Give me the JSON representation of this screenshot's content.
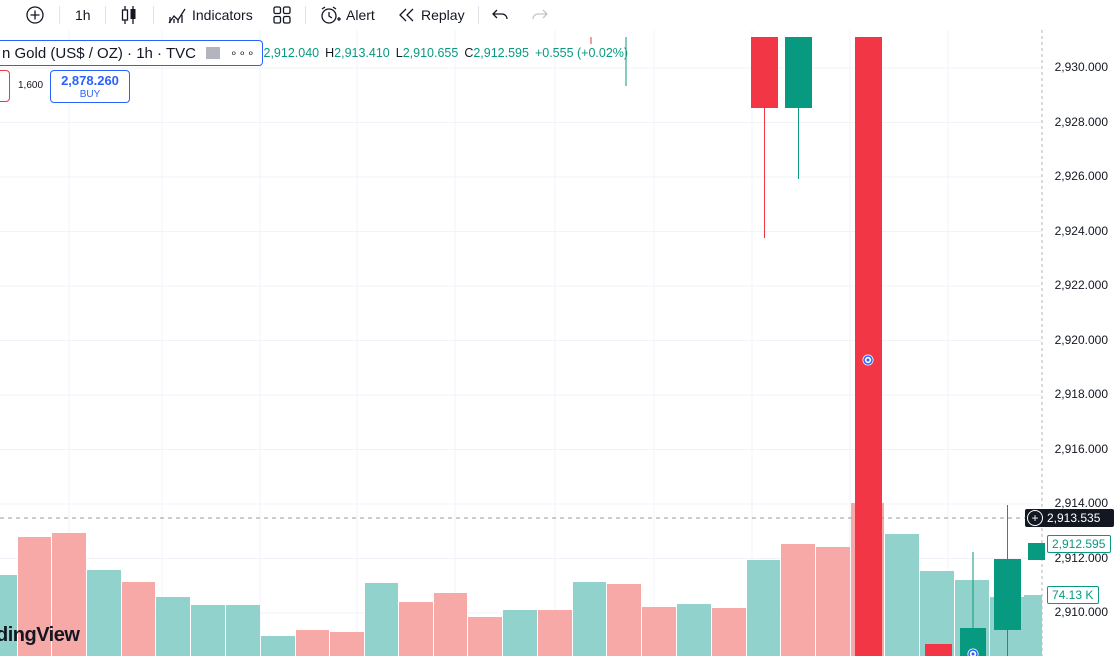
{
  "toolbar": {
    "interval": "1h",
    "indicators_label": "Indicators",
    "alert_label": "Alert",
    "replay_label": "Replay"
  },
  "legend": {
    "symbol_title": "n Gold (US$ / OZ) · 1h · TVC",
    "more": "∘∘∘",
    "open_value": "2,912.040",
    "high_key": "H",
    "high_value": "2,913.410",
    "low_key": "L",
    "low_value": "2,910.655",
    "close_key": "C",
    "close_value": "2,912.595",
    "change": "+0.555 (+0.02%)"
  },
  "trade": {
    "spread": "1,600",
    "buy_price": "2,878.260",
    "buy_label": "BUY"
  },
  "price_axis": {
    "labels": [
      "2,930.000",
      "2,928.000",
      "2,926.000",
      "2,924.000",
      "2,922.000",
      "2,920.000",
      "2,918.000",
      "2,916.000",
      "2,914.000",
      "2,912.000",
      "2,910.000"
    ],
    "crosshair_price": "2,913.535",
    "last_price": "2,912.595",
    "volume_value": "74.13 K"
  },
  "watermark": "dingView",
  "colors": {
    "up": "#089981",
    "down": "#f23645",
    "vol_up": "#92d2cc",
    "vol_down": "#f7a9a7",
    "accent": "#2962ff"
  },
  "chart_data": {
    "type": "candlestick",
    "ylim": [
      2909.0,
      2931.5
    ],
    "candles": [
      {
        "dir": "down",
        "open": 2930.0,
        "close": 2928.5,
        "high": 2930.0,
        "low": 2923.8
      },
      {
        "dir": "up",
        "open": 2928.5,
        "close": 2930.0,
        "high": 2930.0,
        "low": 2926.0
      },
      {
        "dir": "down",
        "open": 2931.5,
        "close": 2909.0,
        "high": 2931.5,
        "low": 2909.0
      },
      {
        "dir": "down",
        "open": 2909.5,
        "close": 2909.0,
        "high": 2909.5,
        "low": 2909.0
      },
      {
        "dir": "up",
        "open": 2909.0,
        "close": 2909.5,
        "high": 2912.3,
        "low": 2909.0
      },
      {
        "dir": "up",
        "open": 2909.5,
        "close": 2912.0,
        "high": 2914.0,
        "low": 2909.0
      },
      {
        "dir": "up",
        "open": 2912.04,
        "close": 2912.595,
        "high": 2913.41,
        "low": 2910.655
      }
    ],
    "volume": [
      {
        "dir": "up"
      },
      {
        "dir": "down"
      },
      {
        "dir": "down"
      },
      {
        "dir": "up"
      },
      {
        "dir": "down"
      },
      {
        "dir": "up"
      },
      {
        "dir": "up"
      },
      {
        "dir": "up"
      },
      {
        "dir": "up"
      },
      {
        "dir": "down"
      },
      {
        "dir": "down"
      },
      {
        "dir": "up"
      },
      {
        "dir": "down"
      },
      {
        "dir": "down"
      },
      {
        "dir": "down"
      },
      {
        "dir": "up"
      },
      {
        "dir": "down"
      },
      {
        "dir": "up"
      },
      {
        "dir": "down"
      },
      {
        "dir": "down"
      },
      {
        "dir": "up"
      },
      {
        "dir": "down"
      },
      {
        "dir": "up"
      },
      {
        "dir": "down"
      },
      {
        "dir": "down"
      },
      {
        "dir": "down"
      },
      {
        "dir": "up"
      },
      {
        "dir": "up"
      },
      {
        "dir": "up"
      },
      {
        "dir": "up"
      }
    ]
  }
}
